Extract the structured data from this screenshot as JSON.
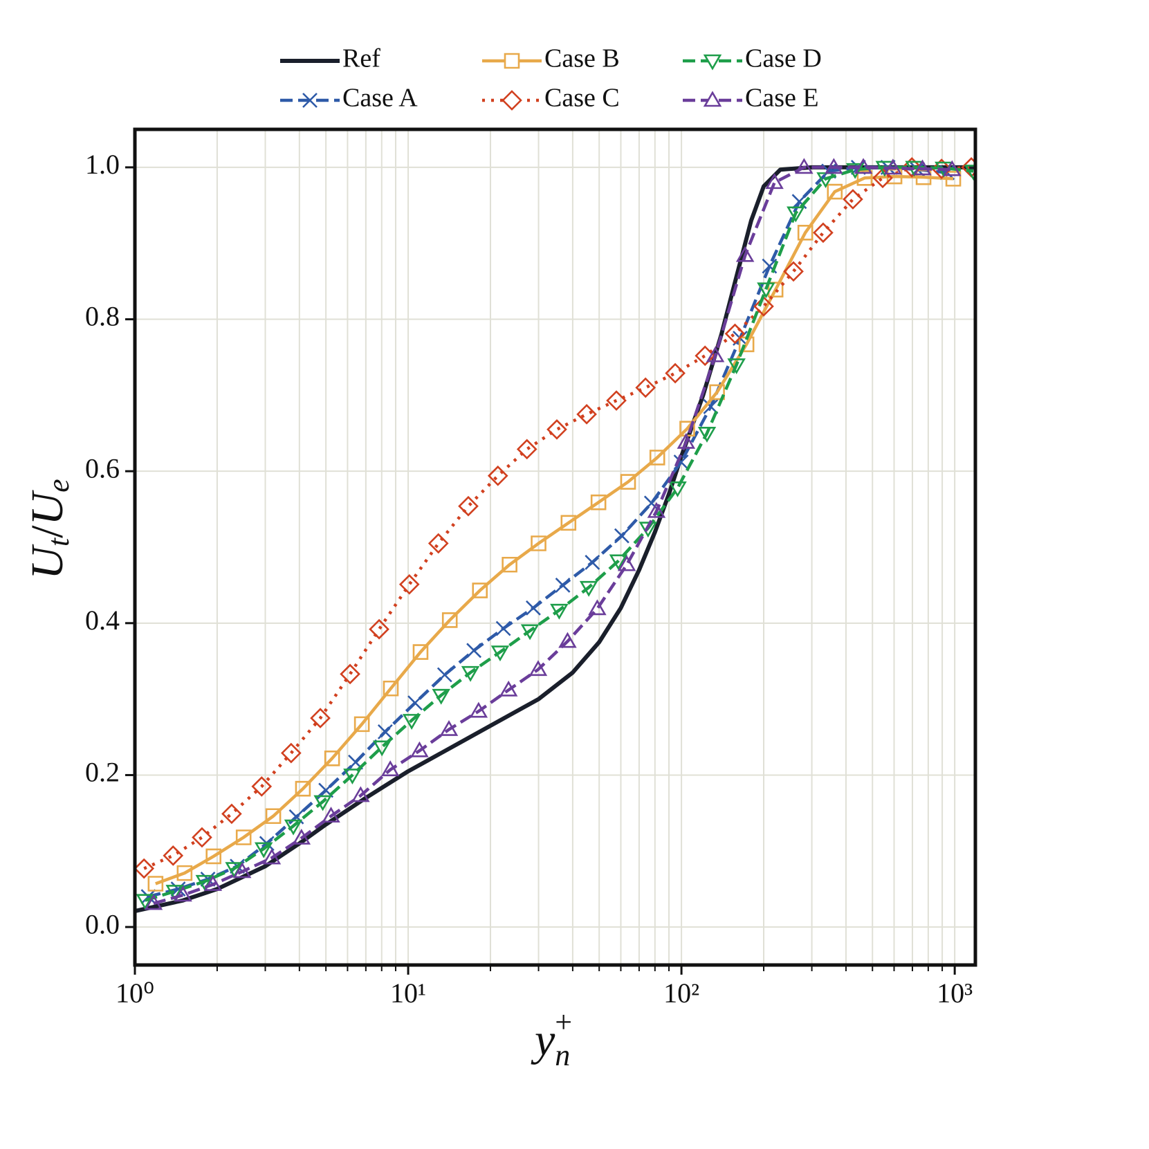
{
  "chart_data": {
    "type": "line",
    "xlabel": [
      "y",
      "n",
      "+"
    ],
    "ylabel": [
      "U",
      "t",
      "/",
      "U",
      "e"
    ],
    "xscale": "log",
    "xlim": [
      1,
      1190
    ],
    "ylim": [
      -0.05,
      1.05
    ],
    "xticks": [
      {
        "value": 1,
        "label": "10⁰"
      },
      {
        "value": 10,
        "label": "10¹"
      },
      {
        "value": 100,
        "label": "10²"
      },
      {
        "value": 1000,
        "label": "10³"
      }
    ],
    "xminorticks": [
      2,
      3,
      4,
      5,
      6,
      7,
      8,
      9,
      20,
      30,
      40,
      50,
      60,
      70,
      80,
      90,
      200,
      300,
      400,
      500,
      600,
      700,
      800,
      900
    ],
    "yticks": [
      {
        "value": 0,
        "label": "0.0"
      },
      0.2,
      0.4,
      0.6,
      0.8,
      {
        "value": 1,
        "label": "1.0"
      }
    ],
    "grid": true,
    "legend": {
      "loc": "upper center",
      "ncol": 3
    },
    "series": [
      {
        "name": "Ref",
        "color": "#1a1f2b",
        "linestyle": "solid",
        "marker": "none",
        "x": [
          1,
          1.5,
          2,
          3,
          4,
          5,
          7,
          10,
          15,
          20,
          30,
          40,
          50,
          60,
          70,
          80,
          90,
          100,
          120,
          140,
          160,
          180,
          200,
          230,
          300,
          1190
        ],
        "values": [
          0.021,
          0.035,
          0.05,
          0.08,
          0.11,
          0.135,
          0.17,
          0.205,
          0.24,
          0.265,
          0.3,
          0.335,
          0.375,
          0.42,
          0.47,
          0.52,
          0.57,
          0.62,
          0.7,
          0.78,
          0.86,
          0.93,
          0.975,
          0.997,
          1.0,
          1.0
        ]
      },
      {
        "name": "Case A",
        "color": "#2e5aa8",
        "linestyle": "dashed",
        "marker": "x",
        "x": [
          1.12,
          1.44,
          1.85,
          2.37,
          3.04,
          3.9,
          5.0,
          6.42,
          8.24,
          10.6,
          13.6,
          17.4,
          22.3,
          28.7,
          36.8,
          47.2,
          60.5,
          77.7,
          99.7,
          128,
          164,
          210,
          270,
          346,
          444,
          570,
          731,
          938
        ],
        "values": [
          0.04,
          0.05,
          0.063,
          0.08,
          0.11,
          0.145,
          0.18,
          0.217,
          0.257,
          0.295,
          0.332,
          0.364,
          0.393,
          0.42,
          0.45,
          0.48,
          0.515,
          0.558,
          0.612,
          0.685,
          0.775,
          0.87,
          0.955,
          0.995,
          1.0,
          1.0,
          0.997,
          0.993
        ]
      },
      {
        "name": "Case B",
        "color": "#e8a94a",
        "linestyle": "solid",
        "marker": "square",
        "x": [
          1.19,
          1.52,
          1.94,
          2.5,
          3.21,
          4.12,
          5.27,
          6.77,
          8.64,
          11.1,
          14.2,
          18.3,
          23.5,
          30.0,
          38.6,
          49.7,
          63.8,
          81.6,
          105,
          135,
          173,
          221,
          284,
          364,
          468,
          602,
          769,
          988
        ],
        "values": [
          0.057,
          0.071,
          0.093,
          0.118,
          0.146,
          0.182,
          0.222,
          0.267,
          0.314,
          0.362,
          0.404,
          0.443,
          0.477,
          0.505,
          0.532,
          0.559,
          0.586,
          0.618,
          0.656,
          0.704,
          0.767,
          0.839,
          0.914,
          0.968,
          0.986,
          0.988,
          0.987,
          0.985
        ]
      },
      {
        "name": "Case C",
        "color": "#d1401f",
        "linestyle": "dotted",
        "marker": "diamond",
        "x": [
          1.08,
          1.38,
          1.76,
          2.26,
          2.91,
          3.73,
          4.77,
          6.13,
          7.83,
          10.1,
          12.9,
          16.6,
          21.3,
          27.2,
          35.0,
          45.0,
          57.8,
          73.9,
          94.9,
          122,
          157,
          200,
          257,
          330,
          424,
          545,
          697,
          895,
          1150
        ],
        "values": [
          0.077,
          0.094,
          0.118,
          0.149,
          0.185,
          0.229,
          0.275,
          0.333,
          0.392,
          0.451,
          0.505,
          0.554,
          0.594,
          0.629,
          0.655,
          0.675,
          0.693,
          0.71,
          0.729,
          0.752,
          0.781,
          0.817,
          0.863,
          0.914,
          0.958,
          0.986,
          1.0,
          0.998,
          1.0
        ]
      },
      {
        "name": "Case D",
        "color": "#1e9e4a",
        "linestyle": "dashed",
        "marker": "triangle_down",
        "x": [
          1.09,
          1.4,
          1.8,
          2.31,
          2.96,
          3.8,
          4.87,
          6.25,
          8.02,
          10.3,
          13.2,
          16.9,
          21.7,
          27.9,
          35.7,
          45.8,
          58.8,
          75.5,
          96.8,
          124,
          159,
          204,
          262,
          337,
          432,
          554,
          711,
          912,
          1170
        ],
        "values": [
          0.035,
          0.047,
          0.06,
          0.077,
          0.103,
          0.133,
          0.165,
          0.2,
          0.237,
          0.272,
          0.305,
          0.335,
          0.362,
          0.39,
          0.417,
          0.447,
          0.482,
          0.525,
          0.578,
          0.65,
          0.74,
          0.84,
          0.94,
          0.985,
          0.997,
          1.0,
          1.0,
          0.999,
          0.995
        ]
      },
      {
        "name": "Case E",
        "color": "#6a3d9a",
        "linestyle": "dashed",
        "marker": "triangle_up",
        "x": [
          1.17,
          1.5,
          1.93,
          2.47,
          3.17,
          4.07,
          5.22,
          6.7,
          8.6,
          11.0,
          14.1,
          18.1,
          23.3,
          29.9,
          38.3,
          49.2,
          63.1,
          81.0,
          104,
          133,
          171,
          219,
          281,
          361,
          463,
          594,
          762,
          978
        ],
        "values": [
          0.031,
          0.042,
          0.056,
          0.073,
          0.091,
          0.117,
          0.146,
          0.173,
          0.207,
          0.232,
          0.26,
          0.284,
          0.312,
          0.339,
          0.376,
          0.419,
          0.477,
          0.547,
          0.638,
          0.752,
          0.884,
          0.98,
          1.0,
          1.0,
          1.0,
          0.999,
          0.998,
          0.997
        ]
      }
    ]
  }
}
